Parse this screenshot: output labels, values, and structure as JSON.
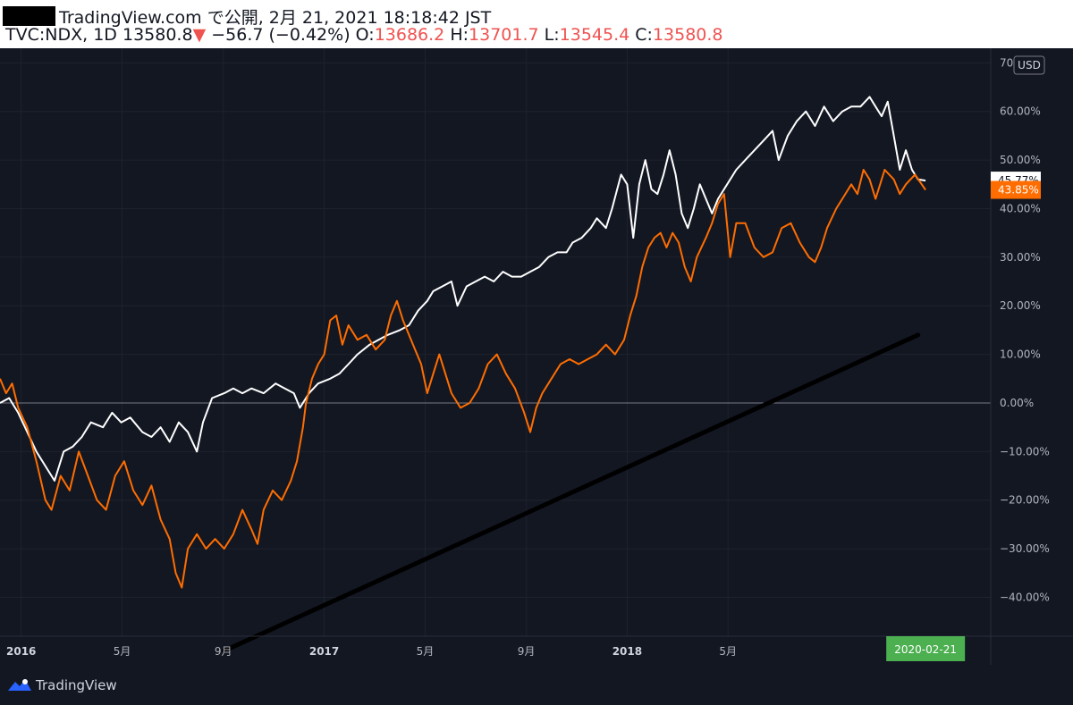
{
  "header": {
    "published": "TradingView.com で公開, 2月 21, 2021 18:18:42 JST",
    "symbol": "TVC:NDX, 1D",
    "last": "13580.8",
    "change_arrow": "▼",
    "change": "−56.7 (−0.42%)",
    "open_label": "O:",
    "open": "13686.2",
    "high_label": "H:",
    "high": "13701.7",
    "low_label": "L:",
    "low": "13545.4",
    "close_label": "C:",
    "close": "13580.8"
  },
  "footer": {
    "brand": "TradingView"
  },
  "colors": {
    "background": "#131722",
    "white_series": "#ffffff",
    "orange_series": "#ff6d00",
    "grid": "#1e222d",
    "date_badge": "#4caf50",
    "trend_line": "#000000"
  },
  "chart_data": {
    "type": "line",
    "y_unit_label": "USD",
    "ylim": [
      -48,
      73
    ],
    "y_ticks": [
      70,
      60,
      50,
      40,
      30,
      20,
      10,
      0,
      -10,
      -20,
      -30,
      -40
    ],
    "y_tick_labels": [
      "70.00%",
      "60.00%",
      "50.00%",
      "40.00%",
      "30.00%",
      "20.00%",
      "10.00%",
      "0.00%",
      "−10.00%",
      "−20.00%",
      "−30.00%",
      "−40.00%"
    ],
    "x_range": [
      2015.93,
      2019.2
    ],
    "x_ticks": [
      {
        "x": 2016.0,
        "label": "2016",
        "year": true
      },
      {
        "x": 2016.333,
        "label": "5月",
        "year": false
      },
      {
        "x": 2016.667,
        "label": "9月",
        "year": false
      },
      {
        "x": 2017.0,
        "label": "2017",
        "year": true
      },
      {
        "x": 2017.333,
        "label": "5月",
        "year": false
      },
      {
        "x": 2017.667,
        "label": "9月",
        "year": false
      },
      {
        "x": 2018.0,
        "label": "2018",
        "year": true
      },
      {
        "x": 2018.333,
        "label": "5月",
        "year": false
      }
    ],
    "crosshair_date": "2020-02-21",
    "crosshair_x": 2018.985,
    "series": [
      {
        "values_label": "45.77%",
        "color": "#ffffff",
        "points": [
          [
            2015.93,
            0
          ],
          [
            2015.96,
            1
          ],
          [
            2015.99,
            -2
          ],
          [
            2016.02,
            -6
          ],
          [
            2016.05,
            -10
          ],
          [
            2016.09,
            -14
          ],
          [
            2016.11,
            -16
          ],
          [
            2016.14,
            -10
          ],
          [
            2016.17,
            -9
          ],
          [
            2016.2,
            -7
          ],
          [
            2016.23,
            -4
          ],
          [
            2016.27,
            -5
          ],
          [
            2016.3,
            -2
          ],
          [
            2016.33,
            -4
          ],
          [
            2016.36,
            -3
          ],
          [
            2016.4,
            -6
          ],
          [
            2016.43,
            -7
          ],
          [
            2016.46,
            -5
          ],
          [
            2016.49,
            -8
          ],
          [
            2016.52,
            -4
          ],
          [
            2016.55,
            -6
          ],
          [
            2016.58,
            -10
          ],
          [
            2016.6,
            -4
          ],
          [
            2016.63,
            1
          ],
          [
            2016.67,
            2
          ],
          [
            2016.7,
            3
          ],
          [
            2016.73,
            2
          ],
          [
            2016.76,
            3
          ],
          [
            2016.8,
            2
          ],
          [
            2016.84,
            4
          ],
          [
            2016.87,
            3
          ],
          [
            2016.9,
            2
          ],
          [
            2016.92,
            -1
          ],
          [
            2016.95,
            2
          ],
          [
            2016.98,
            4
          ],
          [
            2017.02,
            5
          ],
          [
            2017.05,
            6
          ],
          [
            2017.08,
            8
          ],
          [
            2017.11,
            10
          ],
          [
            2017.15,
            12
          ],
          [
            2017.18,
            13
          ],
          [
            2017.21,
            14
          ],
          [
            2017.25,
            15
          ],
          [
            2017.28,
            16
          ],
          [
            2017.31,
            19
          ],
          [
            2017.34,
            21
          ],
          [
            2017.36,
            23
          ],
          [
            2017.39,
            24
          ],
          [
            2017.42,
            25
          ],
          [
            2017.44,
            20
          ],
          [
            2017.47,
            24
          ],
          [
            2017.5,
            25
          ],
          [
            2017.53,
            26
          ],
          [
            2017.56,
            25
          ],
          [
            2017.59,
            27
          ],
          [
            2017.62,
            26
          ],
          [
            2017.65,
            26
          ],
          [
            2017.68,
            27
          ],
          [
            2017.71,
            28
          ],
          [
            2017.74,
            30
          ],
          [
            2017.77,
            31
          ],
          [
            2017.8,
            31
          ],
          [
            2017.82,
            33
          ],
          [
            2017.85,
            34
          ],
          [
            2017.88,
            36
          ],
          [
            2017.9,
            38
          ],
          [
            2017.93,
            36
          ],
          [
            2017.95,
            40
          ],
          [
            2017.98,
            47
          ],
          [
            2018.0,
            45
          ],
          [
            2018.02,
            34
          ],
          [
            2018.04,
            45
          ],
          [
            2018.06,
            50
          ],
          [
            2018.08,
            44
          ],
          [
            2018.1,
            43
          ],
          [
            2018.12,
            47
          ],
          [
            2018.14,
            52
          ],
          [
            2018.16,
            47
          ],
          [
            2018.18,
            39
          ],
          [
            2018.2,
            36
          ],
          [
            2018.22,
            40
          ],
          [
            2018.24,
            45
          ],
          [
            2018.26,
            42
          ],
          [
            2018.28,
            39
          ],
          [
            2018.3,
            42
          ],
          [
            2018.33,
            45
          ],
          [
            2018.36,
            48
          ],
          [
            2018.39,
            50
          ],
          [
            2018.42,
            52
          ],
          [
            2018.45,
            54
          ],
          [
            2018.48,
            56
          ],
          [
            2018.5,
            50
          ],
          [
            2018.53,
            55
          ],
          [
            2018.56,
            58
          ],
          [
            2018.59,
            60
          ],
          [
            2018.62,
            57
          ],
          [
            2018.65,
            61
          ],
          [
            2018.68,
            58
          ],
          [
            2018.71,
            60
          ],
          [
            2018.74,
            61
          ],
          [
            2018.77,
            61
          ],
          [
            2018.8,
            63
          ],
          [
            2018.82,
            61
          ],
          [
            2018.84,
            59
          ],
          [
            2018.86,
            62
          ],
          [
            2018.88,
            55
          ],
          [
            2018.9,
            48
          ],
          [
            2018.92,
            52
          ],
          [
            2018.94,
            48
          ],
          [
            2018.96,
            46
          ],
          [
            2018.985,
            45.77
          ]
        ]
      },
      {
        "values_label": "43.85%",
        "color": "#ff6d00",
        "points": [
          [
            2015.93,
            5
          ],
          [
            2015.95,
            2
          ],
          [
            2015.97,
            4
          ],
          [
            2015.99,
            -1
          ],
          [
            2016.02,
            -5
          ],
          [
            2016.05,
            -12
          ],
          [
            2016.08,
            -20
          ],
          [
            2016.1,
            -22
          ],
          [
            2016.13,
            -15
          ],
          [
            2016.16,
            -18
          ],
          [
            2016.19,
            -10
          ],
          [
            2016.22,
            -15
          ],
          [
            2016.25,
            -20
          ],
          [
            2016.28,
            -22
          ],
          [
            2016.31,
            -15
          ],
          [
            2016.34,
            -12
          ],
          [
            2016.37,
            -18
          ],
          [
            2016.4,
            -21
          ],
          [
            2016.43,
            -17
          ],
          [
            2016.46,
            -24
          ],
          [
            2016.49,
            -28
          ],
          [
            2016.51,
            -35
          ],
          [
            2016.53,
            -38
          ],
          [
            2016.55,
            -30
          ],
          [
            2016.58,
            -27
          ],
          [
            2016.61,
            -30
          ],
          [
            2016.64,
            -28
          ],
          [
            2016.67,
            -30
          ],
          [
            2016.7,
            -27
          ],
          [
            2016.73,
            -22
          ],
          [
            2016.76,
            -26
          ],
          [
            2016.78,
            -29
          ],
          [
            2016.8,
            -22
          ],
          [
            2016.83,
            -18
          ],
          [
            2016.86,
            -20
          ],
          [
            2016.89,
            -16
          ],
          [
            2016.91,
            -12
          ],
          [
            2016.93,
            -5
          ],
          [
            2016.94,
            0
          ],
          [
            2016.96,
            5
          ],
          [
            2016.98,
            8
          ],
          [
            2017.0,
            10
          ],
          [
            2017.02,
            17
          ],
          [
            2017.04,
            18
          ],
          [
            2017.06,
            12
          ],
          [
            2017.08,
            16
          ],
          [
            2017.11,
            13
          ],
          [
            2017.14,
            14
          ],
          [
            2017.17,
            11
          ],
          [
            2017.2,
            13
          ],
          [
            2017.22,
            18
          ],
          [
            2017.24,
            21
          ],
          [
            2017.26,
            17
          ],
          [
            2017.28,
            14
          ],
          [
            2017.3,
            11
          ],
          [
            2017.32,
            8
          ],
          [
            2017.34,
            2
          ],
          [
            2017.36,
            6
          ],
          [
            2017.38,
            10
          ],
          [
            2017.4,
            6
          ],
          [
            2017.42,
            2
          ],
          [
            2017.45,
            -1
          ],
          [
            2017.48,
            0
          ],
          [
            2017.51,
            3
          ],
          [
            2017.54,
            8
          ],
          [
            2017.57,
            10
          ],
          [
            2017.6,
            6
          ],
          [
            2017.63,
            3
          ],
          [
            2017.66,
            -2
          ],
          [
            2017.68,
            -6
          ],
          [
            2017.7,
            -1
          ],
          [
            2017.72,
            2
          ],
          [
            2017.75,
            5
          ],
          [
            2017.78,
            8
          ],
          [
            2017.81,
            9
          ],
          [
            2017.84,
            8
          ],
          [
            2017.87,
            9
          ],
          [
            2017.9,
            10
          ],
          [
            2017.93,
            12
          ],
          [
            2017.96,
            10
          ],
          [
            2017.99,
            13
          ],
          [
            2018.01,
            18
          ],
          [
            2018.03,
            22
          ],
          [
            2018.05,
            28
          ],
          [
            2018.07,
            32
          ],
          [
            2018.09,
            34
          ],
          [
            2018.11,
            35
          ],
          [
            2018.13,
            32
          ],
          [
            2018.15,
            35
          ],
          [
            2018.17,
            33
          ],
          [
            2018.19,
            28
          ],
          [
            2018.21,
            25
          ],
          [
            2018.23,
            30
          ],
          [
            2018.26,
            34
          ],
          [
            2018.28,
            37
          ],
          [
            2018.3,
            41
          ],
          [
            2018.32,
            43
          ],
          [
            2018.34,
            30
          ],
          [
            2018.36,
            37
          ],
          [
            2018.39,
            37
          ],
          [
            2018.42,
            32
          ],
          [
            2018.45,
            30
          ],
          [
            2018.48,
            31
          ],
          [
            2018.51,
            36
          ],
          [
            2018.54,
            37
          ],
          [
            2018.57,
            33
          ],
          [
            2018.6,
            30
          ],
          [
            2018.62,
            29
          ],
          [
            2018.64,
            32
          ],
          [
            2018.66,
            36
          ],
          [
            2018.69,
            40
          ],
          [
            2018.72,
            43
          ],
          [
            2018.74,
            45
          ],
          [
            2018.76,
            43
          ],
          [
            2018.78,
            48
          ],
          [
            2018.8,
            46
          ],
          [
            2018.82,
            42
          ],
          [
            2018.85,
            48
          ],
          [
            2018.88,
            46
          ],
          [
            2018.9,
            43
          ],
          [
            2018.92,
            45
          ],
          [
            2018.95,
            47
          ],
          [
            2018.985,
            43.85
          ]
        ]
      }
    ],
    "trend_line": [
      [
        2016.67,
        -51
      ],
      [
        2018.96,
        14
      ]
    ]
  }
}
